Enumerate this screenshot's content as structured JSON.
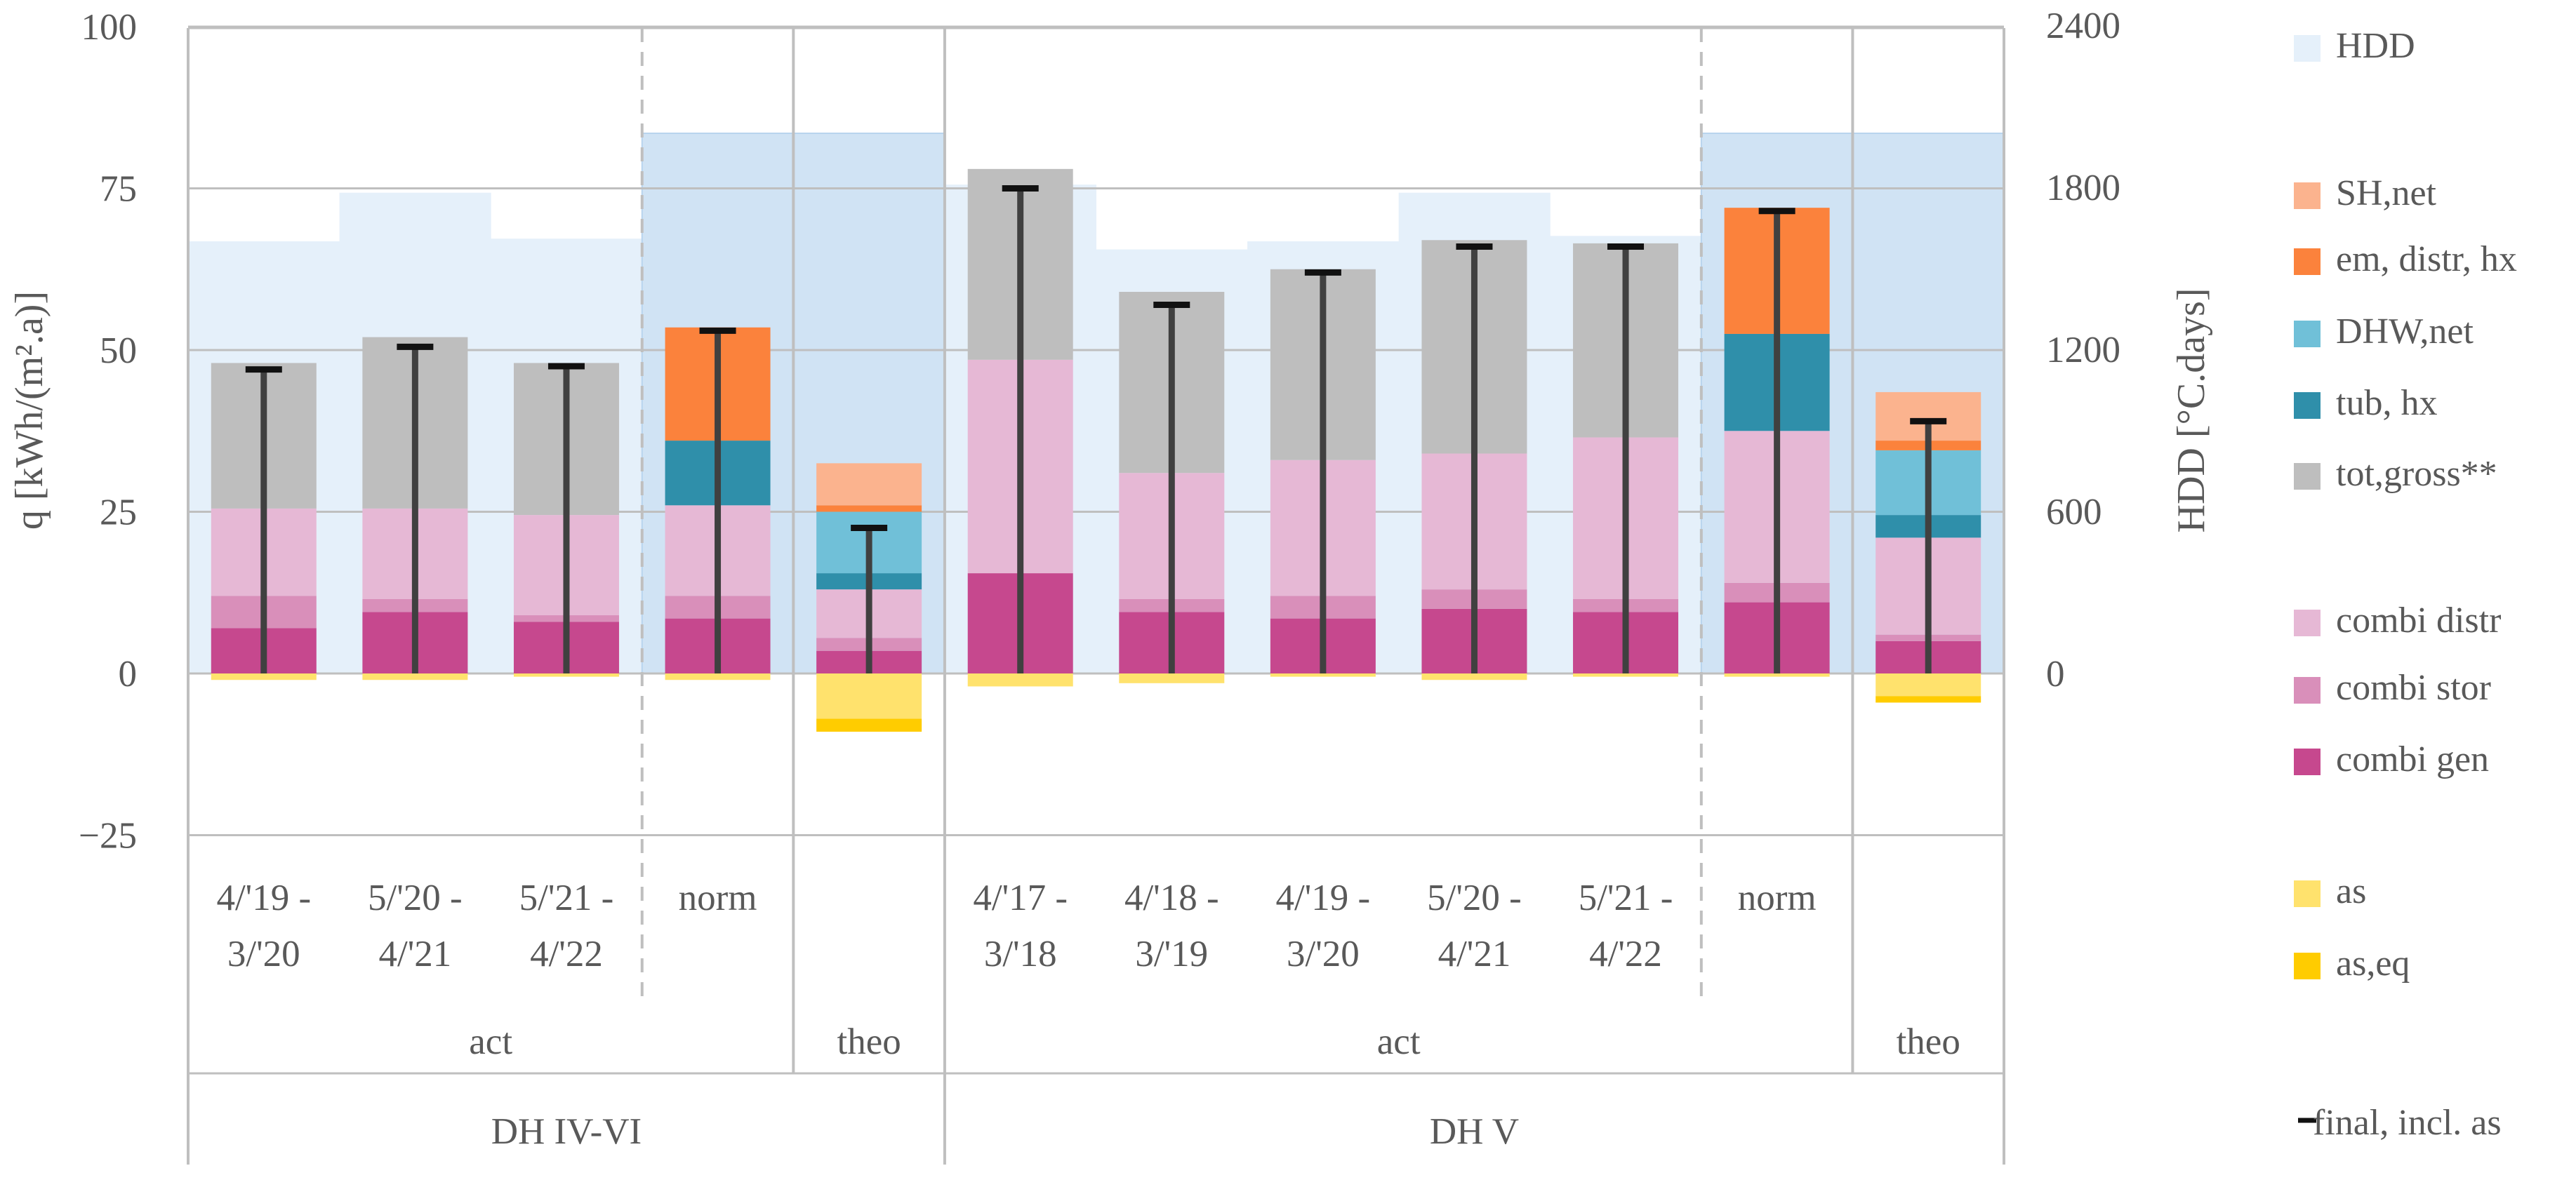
{
  "colors": {
    "HDD_light": "#e5f0fa",
    "HDD_norm": "#d0e3f4",
    "SH_net": "#fbb38e",
    "em_distr_hx": "#fb823c",
    "DHW_net": "#70c0d8",
    "tub_hx": "#2f8faa",
    "tot_gross": "#bebebe",
    "combi_distr": "#e6b8d5",
    "combi_stor": "#d98fba",
    "combi_gen": "#c6488e",
    "as": "#ffe26d",
    "as_eq": "#ffcc00",
    "final": "#404040",
    "axis": "#bfbfbf"
  },
  "chart_data": {
    "type": "bar",
    "subtype": "stacked bar with whisker markers and secondary-axis background bars",
    "ylabel": "q [kWh/(m².a)]",
    "y2label": "HDD [°C.days]",
    "ylim": [
      -25,
      100
    ],
    "yticks": [
      "100",
      "75",
      "50",
      "25",
      "0",
      "−25"
    ],
    "y2lim": [
      -600,
      2400
    ],
    "y2ticks": [
      "2400",
      "1800",
      "1200",
      "600",
      "0"
    ],
    "legend": [
      "HDD",
      "SH,net",
      "em, distr, hx",
      "DHW,net",
      "tub, hx",
      "tot,gross**",
      "combi distr",
      "combi stor",
      "combi gen",
      "as",
      "as,eq",
      "final, incl. as"
    ],
    "groups": [
      {
        "label": "DH IV-VI",
        "subgroups": [
          "act",
          "theo"
        ]
      },
      {
        "label": "DH V",
        "subgroups": [
          "act",
          "theo"
        ]
      }
    ],
    "subgroup_labels": {
      "act": "act",
      "theo": "theo"
    },
    "categories": [
      {
        "label": [
          "4/'19 -",
          "3/'20"
        ],
        "group": "DH IV-VI",
        "sub": "act",
        "HDD": 1600,
        "combi_gen": 7,
        "combi_stor": 5,
        "combi_distr": 13.5,
        "tub_hx": 0,
        "em_distr_hx": 0,
        "DHW_net": 0,
        "SH_net": 0,
        "tot_gross": 22.5,
        "as": -1,
        "as_eq": 0,
        "final": 47
      },
      {
        "label": [
          "5/'20 -",
          "4/'21"
        ],
        "group": "DH IV-VI",
        "sub": "act",
        "HDD": 1780,
        "combi_gen": 9.5,
        "combi_stor": 2,
        "combi_distr": 14,
        "tub_hx": 0,
        "em_distr_hx": 0,
        "DHW_net": 0,
        "SH_net": 0,
        "tot_gross": 26.5,
        "as": -1,
        "as_eq": 0,
        "final": 50.5
      },
      {
        "label": [
          "5/'21 -",
          "4/'22"
        ],
        "group": "DH IV-VI",
        "sub": "act",
        "HDD": 1610,
        "combi_gen": 8,
        "combi_stor": 1,
        "combi_distr": 15.5,
        "tub_hx": 0,
        "em_distr_hx": 0,
        "DHW_net": 0,
        "SH_net": 0,
        "tot_gross": 23.5,
        "as": -0.5,
        "as_eq": 0,
        "final": 47.5
      },
      {
        "label": [
          "norm"
        ],
        "group": "DH IV-VI",
        "sub": "act",
        "HDD": 2000,
        "combi_gen": 8.5,
        "combi_stor": 3.5,
        "combi_distr": 14,
        "tub_hx": 10,
        "em_distr_hx": 17.5,
        "DHW_net": 0,
        "SH_net": 0,
        "tot_gross": 0,
        "as": -1,
        "as_eq": 0,
        "final": 53
      },
      {
        "label": [
          ""
        ],
        "group": "DH IV-VI",
        "sub": "theo",
        "HDD": 2000,
        "combi_gen": 3.5,
        "combi_stor": 2,
        "combi_distr": 7.5,
        "tub_hx": 2.5,
        "em_distr_hx": 0,
        "DHW_net": 9.5,
        "SH_net": 6.5,
        "SH_gap": 1,
        "tot_gross": 0,
        "as": -7,
        "as_eq": -2,
        "final": 22.5
      },
      {
        "label": [
          "4/'17 -",
          "3/'18"
        ],
        "group": "DH V",
        "sub": "act",
        "HDD": 1810,
        "combi_gen": 15.5,
        "combi_stor": 0,
        "combi_distr": 33,
        "tub_hx": 0,
        "em_distr_hx": 0,
        "DHW_net": 0,
        "SH_net": 0,
        "tot_gross": 29.5,
        "as": -2,
        "as_eq": 0,
        "final": 75
      },
      {
        "label": [
          "4/'18 -",
          "3/'19"
        ],
        "group": "DH V",
        "sub": "act",
        "HDD": 1570,
        "combi_gen": 9.5,
        "combi_stor": 2,
        "combi_distr": 19.5,
        "tub_hx": 0,
        "em_distr_hx": 0,
        "DHW_net": 0,
        "SH_net": 0,
        "tot_gross": 28,
        "as": -1.5,
        "as_eq": 0,
        "final": 57
      },
      {
        "label": [
          "4/'19 -",
          "3/'20"
        ],
        "group": "DH V",
        "sub": "act",
        "HDD": 1600,
        "combi_gen": 8.5,
        "combi_stor": 3.5,
        "combi_distr": 21,
        "tub_hx": 0,
        "em_distr_hx": 0,
        "DHW_net": 0,
        "SH_net": 0,
        "tot_gross": 29.5,
        "as": -0.5,
        "as_eq": 0,
        "final": 62
      },
      {
        "label": [
          "5/'20 -",
          "4/'21"
        ],
        "group": "DH V",
        "sub": "act",
        "HDD": 1780,
        "combi_gen": 10,
        "combi_stor": 3,
        "combi_distr": 21,
        "tub_hx": 0,
        "em_distr_hx": 0,
        "DHW_net": 0,
        "SH_net": 0,
        "tot_gross": 33,
        "as": -1,
        "as_eq": 0,
        "final": 66
      },
      {
        "label": [
          "5/'21 -",
          "4/'22"
        ],
        "group": "DH V",
        "sub": "act",
        "HDD": 1620,
        "combi_gen": 9.5,
        "combi_stor": 2,
        "combi_distr": 25,
        "tub_hx": 0,
        "em_distr_hx": 0,
        "DHW_net": 0,
        "SH_net": 0,
        "tot_gross": 30,
        "as": -0.5,
        "as_eq": 0,
        "final": 66
      },
      {
        "label": [
          "norm"
        ],
        "group": "DH V",
        "sub": "act",
        "HDD": 2000,
        "combi_gen": 11,
        "combi_stor": 3,
        "combi_distr": 23.5,
        "tub_hx": 15,
        "em_distr_hx": 19.5,
        "DHW_net": 0,
        "SH_net": 0,
        "tot_gross": 0,
        "as": -0.5,
        "as_eq": 0,
        "final": 71.5
      },
      {
        "label": [
          ""
        ],
        "group": "DH V",
        "sub": "theo",
        "HDD": 2000,
        "combi_gen": 5,
        "combi_stor": 1,
        "combi_distr": 15,
        "tub_hx": 3.5,
        "em_distr_hx": 0,
        "DHW_net": 10,
        "SH_net": 7.5,
        "SH_gap": 1.5,
        "tot_gross": 0,
        "as": -3.5,
        "as_eq": -1,
        "final": 39
      }
    ]
  }
}
